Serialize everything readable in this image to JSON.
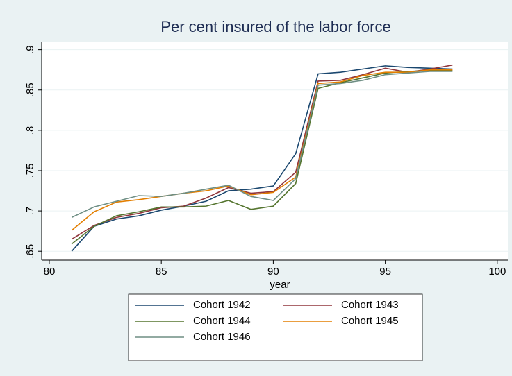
{
  "chart_data": {
    "type": "line",
    "title": "Per cent insured of the labor force",
    "x_label": "year",
    "x": [
      81,
      82,
      83,
      84,
      85,
      86,
      87,
      88,
      89,
      90,
      91,
      92,
      93,
      94,
      95,
      96,
      97,
      98
    ],
    "series": [
      {
        "name": "Cohort 1942",
        "color": "#1a476f",
        "values": [
          0.65,
          0.681,
          0.69,
          0.694,
          0.701,
          0.706,
          0.712,
          0.725,
          0.727,
          0.731,
          0.771,
          0.87,
          0.872,
          0.876,
          0.88,
          0.878,
          0.877,
          0.876
        ]
      },
      {
        "name": "Cohort 1943",
        "color": "#90353b",
        "values": [
          0.665,
          0.682,
          0.692,
          0.697,
          0.704,
          0.706,
          0.716,
          0.729,
          0.722,
          0.724,
          0.748,
          0.861,
          0.862,
          0.869,
          0.877,
          0.872,
          0.876,
          0.881
        ]
      },
      {
        "name": "Cohort 1944",
        "color": "#55752f",
        "values": [
          0.659,
          0.681,
          0.694,
          0.699,
          0.705,
          0.705,
          0.706,
          0.713,
          0.702,
          0.706,
          0.734,
          0.852,
          0.859,
          0.865,
          0.871,
          0.873,
          0.874,
          0.874
        ]
      },
      {
        "name": "Cohort 1945",
        "color": "#e37e00",
        "values": [
          0.676,
          0.699,
          0.711,
          0.714,
          0.718,
          0.722,
          0.725,
          0.731,
          0.72,
          0.723,
          0.742,
          0.858,
          0.86,
          0.868,
          0.872,
          0.872,
          0.875,
          0.875
        ]
      },
      {
        "name": "Cohort 1946",
        "color": "#6e8e84",
        "values": [
          0.692,
          0.705,
          0.712,
          0.719,
          0.718,
          0.722,
          0.727,
          0.732,
          0.718,
          0.713,
          0.74,
          0.856,
          0.858,
          0.862,
          0.869,
          0.871,
          0.873,
          0.873
        ]
      }
    ],
    "xlim": [
      79.66,
      100.47
    ],
    "xticks": [
      80,
      85,
      90,
      95,
      100
    ],
    "ylim": [
      0.639,
      0.91
    ],
    "yticks": [
      {
        "value": 0.65,
        "label": ".65"
      },
      {
        "value": 0.7,
        "label": ".7"
      },
      {
        "value": 0.75,
        "label": ".75"
      },
      {
        "value": 0.8,
        "label": ".8"
      },
      {
        "value": 0.85,
        "label": ".85"
      },
      {
        "value": 0.9,
        "label": ".9"
      }
    ],
    "grid": true
  }
}
